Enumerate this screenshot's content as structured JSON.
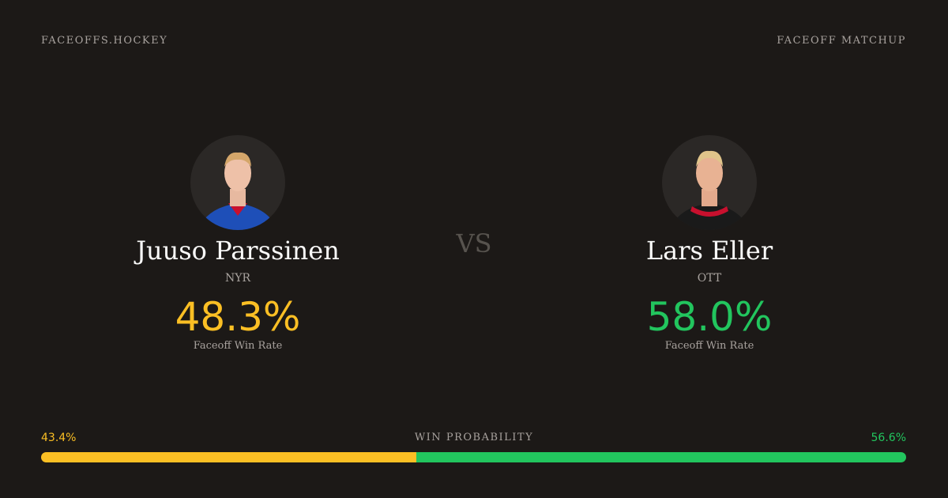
{
  "header": {
    "brand": "FACEOFFS.HOCKEY",
    "label": "FACEOFF MATCHUP"
  },
  "vs": "VS",
  "players": [
    {
      "name": "Juuso Parssinen",
      "team": "NYR",
      "rate": "48.3%",
      "rate_label": "Faceoff Win Rate"
    },
    {
      "name": "Lars Eller",
      "team": "OTT",
      "rate": "58.0%",
      "rate_label": "Faceoff Win Rate"
    }
  ],
  "probability": {
    "label": "WIN PROBABILITY",
    "left": {
      "value": 43.4,
      "label": "43.4%"
    },
    "right": {
      "value": 56.6,
      "label": "56.6%"
    }
  }
}
